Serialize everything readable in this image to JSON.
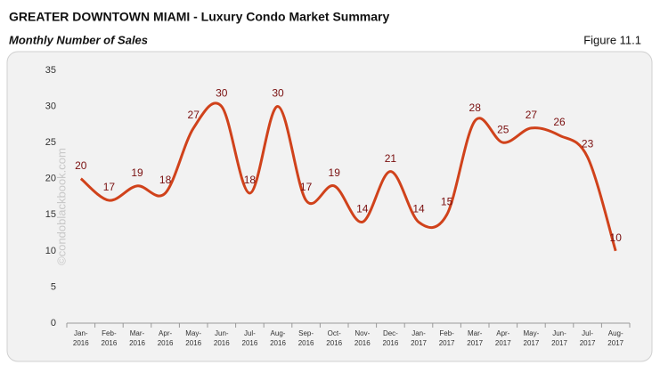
{
  "chart_data": {
    "type": "line",
    "title": "GREATER DOWNTOWN MIAMI - Luxury Condo Market Summary",
    "subtitle": "Monthly Number of Sales",
    "figure_label": "Figure 11.1",
    "watermark": "©condoblackbook.com",
    "categories": [
      "Jan-2016",
      "Feb-2016",
      "Mar-2016",
      "Apr-2016",
      "May-2016",
      "Jun-2016",
      "Jul-2016",
      "Aug-2016",
      "Sep-2016",
      "Oct-2016",
      "Nov-2016",
      "Dec-2016",
      "Jan-2017",
      "Feb-2017",
      "Mar-2017",
      "Apr-2017",
      "May-2017",
      "Jun-2017",
      "Jul-2017",
      "Aug-2017"
    ],
    "values": [
      20,
      17,
      19,
      18,
      27,
      30,
      18,
      30,
      17,
      19,
      14,
      21,
      14,
      15,
      28,
      25,
      27,
      26,
      23,
      10
    ],
    "color": "#d0421b",
    "label_color": "#7a1010",
    "ylim": [
      0,
      35
    ],
    "yticks": [
      0,
      5,
      10,
      15,
      20,
      25,
      30,
      35
    ],
    "grid": false
  }
}
